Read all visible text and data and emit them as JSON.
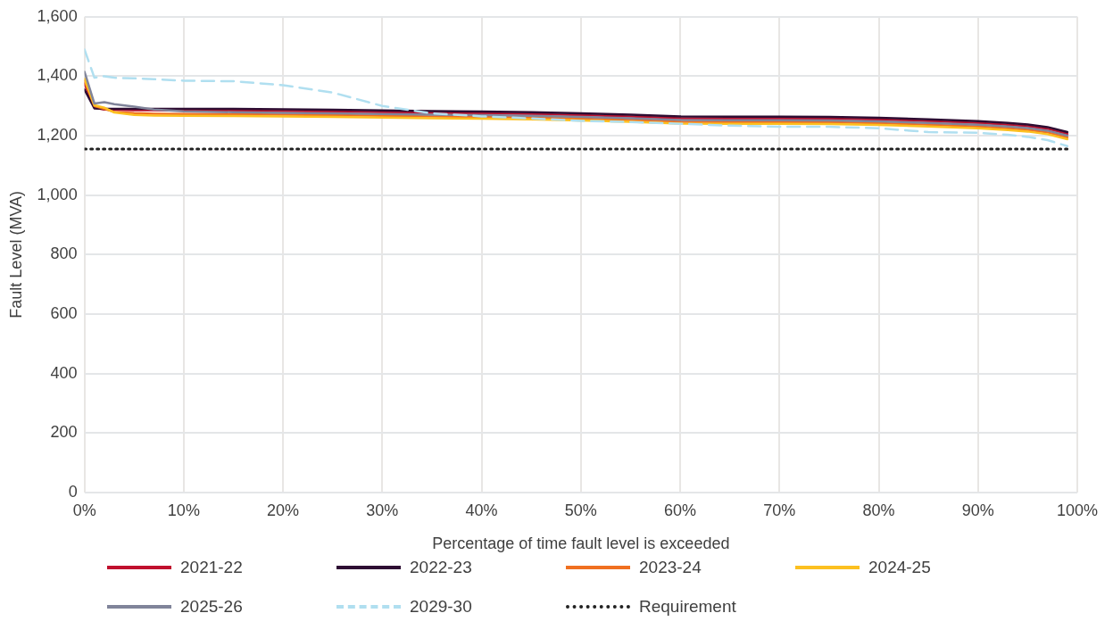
{
  "chart_data": {
    "type": "line",
    "xlabel": "Percentage of time fault level is exceeded",
    "ylabel": "Fault Level (MVA)",
    "x": [
      0,
      1,
      2,
      3,
      5,
      7,
      10,
      15,
      20,
      25,
      30,
      35,
      40,
      45,
      50,
      55,
      60,
      65,
      70,
      75,
      80,
      85,
      90,
      93,
      95,
      97,
      99
    ],
    "series": [
      {
        "name": "2021-22",
        "color": "#c0102e",
        "values": [
          1375,
          1295,
          1288,
          1287,
          1286,
          1286,
          1285,
          1284,
          1283,
          1281,
          1279,
          1277,
          1275,
          1273,
          1269,
          1265,
          1259,
          1258,
          1258,
          1257,
          1254,
          1249,
          1243,
          1237,
          1232,
          1223,
          1206
        ]
      },
      {
        "name": "2022-23",
        "color": "#2e0d33",
        "values": [
          1355,
          1292,
          1290,
          1290,
          1290,
          1290,
          1290,
          1290,
          1289,
          1287,
          1285,
          1283,
          1281,
          1279,
          1275,
          1271,
          1265,
          1264,
          1264,
          1263,
          1260,
          1255,
          1249,
          1243,
          1238,
          1229,
          1212
        ]
      },
      {
        "name": "2023-24",
        "color": "#f07020",
        "values": [
          1385,
          1300,
          1290,
          1280,
          1276,
          1274,
          1273,
          1272,
          1271,
          1269,
          1267,
          1265,
          1263,
          1261,
          1257,
          1253,
          1247,
          1246,
          1246,
          1245,
          1242,
          1237,
          1231,
          1225,
          1220,
          1211,
          1194
        ]
      },
      {
        "name": "2024-25",
        "color": "#fcc020",
        "values": [
          1392,
          1302,
          1294,
          1278,
          1270,
          1268,
          1267,
          1266,
          1265,
          1263,
          1261,
          1259,
          1257,
          1255,
          1251,
          1247,
          1241,
          1240,
          1240,
          1239,
          1236,
          1231,
          1225,
          1219,
          1214,
          1205,
          1188
        ]
      },
      {
        "name": "2025-26",
        "color": "#80849a",
        "values": [
          1415,
          1308,
          1313,
          1306,
          1298,
          1288,
          1282,
          1279,
          1277,
          1275,
          1273,
          1271,
          1269,
          1267,
          1263,
          1259,
          1253,
          1252,
          1252,
          1251,
          1248,
          1243,
          1237,
          1231,
          1226,
          1217,
          1200
        ]
      },
      {
        "name": "2029-30",
        "color": "#b0dff0",
        "line_style": "dashed",
        "values": [
          1490,
          1395,
          1400,
          1395,
          1393,
          1390,
          1385,
          1383,
          1370,
          1345,
          1300,
          1275,
          1265,
          1258,
          1250,
          1246,
          1240,
          1234,
          1230,
          1230,
          1225,
          1212,
          1210,
          1203,
          1196,
          1185,
          1165
        ]
      }
    ],
    "xlim": [
      0,
      100
    ],
    "xticks": [
      {
        "value": 0,
        "label": "0%"
      },
      {
        "value": 10,
        "label": "10%"
      },
      {
        "value": 20,
        "label": "20%"
      },
      {
        "value": 30,
        "label": "30%"
      },
      {
        "value": 40,
        "label": "40%"
      },
      {
        "value": 50,
        "label": "50%"
      },
      {
        "value": 60,
        "label": "60%"
      },
      {
        "value": 70,
        "label": "70%"
      },
      {
        "value": 80,
        "label": "80%"
      },
      {
        "value": 90,
        "label": "90%"
      },
      {
        "value": 100,
        "label": "100%"
      }
    ],
    "ylim": [
      0,
      1600
    ],
    "yticks": [
      0,
      200,
      400,
      600,
      800,
      {
        "value": 1000,
        "label": "1,000"
      },
      {
        "value": 1200,
        "label": "1,200"
      },
      {
        "value": 1400,
        "label": "1,400"
      },
      {
        "value": 1600,
        "label": "1,600"
      }
    ],
    "ref_lines": [
      {
        "axis": "y",
        "value": 1155,
        "label": "Requirement",
        "color": "#222222",
        "line_style": "dotted"
      }
    ],
    "grid": true,
    "legend": "bottom",
    "marker": "none",
    "line_style": "solid"
  }
}
